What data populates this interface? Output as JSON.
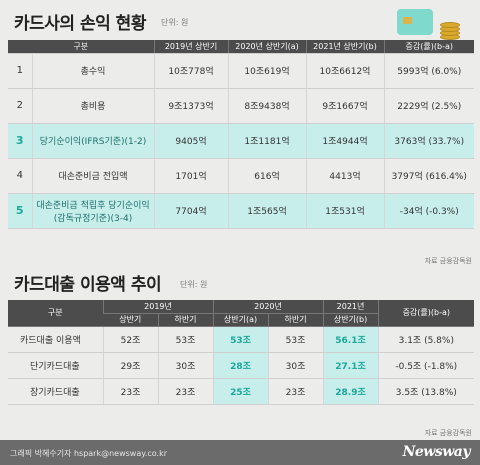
{
  "section1": {
    "title": "카드사의 손익 현황",
    "unit": "단위: 원",
    "headers": [
      "구분",
      "2019년 상반기",
      "2020년 상반기(a)",
      "2021년 상반기(b)",
      "증감(률)(b-a)"
    ],
    "rows": [
      {
        "num": "1",
        "item": "총수익",
        "y2019": "10조778억",
        "y2020": "10조619억",
        "y2021": "10조6612억",
        "change": "5993억 (6.0%)",
        "highlight": false
      },
      {
        "num": "2",
        "item": "총비용",
        "y2019": "9조1373억",
        "y2020": "8조9438억",
        "y2021": "9조1667억",
        "change": "2229억 (2.5%)",
        "highlight": false
      },
      {
        "num": "3",
        "item": "당기순이익(IFRS기준)(1-2)",
        "y2019": "9405억",
        "y2020": "1조1181억",
        "y2021": "1조4944억",
        "change": "3763억 (33.7%)",
        "highlight": true
      },
      {
        "num": "4",
        "item": "대손준비금 전입액",
        "y2019": "1701억",
        "y2020": "616억",
        "y2021": "4413억",
        "change": "3797억 (616.4%)",
        "highlight": false
      },
      {
        "num": "5",
        "item": "대손준비금 적립후 당기순이익",
        "item2": "(감독규정기준)(3-4)",
        "y2019": "7704억",
        "y2020": "1조565억",
        "y2021": "1조531억",
        "change": "-34억 (-0.3%)",
        "highlight": true
      }
    ],
    "source": "자료  금융감독원"
  },
  "section2": {
    "title": "카드대출 이용액 추이",
    "unit": "단위: 원",
    "header_top": [
      "구분",
      "2019년",
      "2020년",
      "2021년",
      "증감(률)(b-a)"
    ],
    "header_sub": [
      "상반기",
      "하반기",
      "상반기(a)",
      "하반기",
      "상반기(b)"
    ],
    "rows": [
      {
        "label": "카드대출 이용액",
        "v": [
          "52조",
          "53조",
          "53조",
          "53조",
          "56.1조"
        ],
        "change": "3.1조 (5.8%)"
      },
      {
        "label": "단기카드대출",
        "v": [
          "29조",
          "30조",
          "28조",
          "30조",
          "27.1조"
        ],
        "change": "-0.5조 (-1.8%)"
      },
      {
        "label": "장기카드대출",
        "v": [
          "23조",
          "23조",
          "25조",
          "23조",
          "28.9조"
        ],
        "change": "3.5조 (13.8%)"
      }
    ],
    "source": "자료  금융감독원"
  },
  "footer": {
    "credit": "그래픽 박혜수기자 hspark@newsway.co.kr",
    "brand": "Newsway"
  },
  "icons": [
    "credit-card-icon",
    "coin-stack-icon"
  ],
  "colors": {
    "accent": "#1aa89a",
    "highlight": "#c8eeec",
    "header": "#4c4c4c"
  }
}
